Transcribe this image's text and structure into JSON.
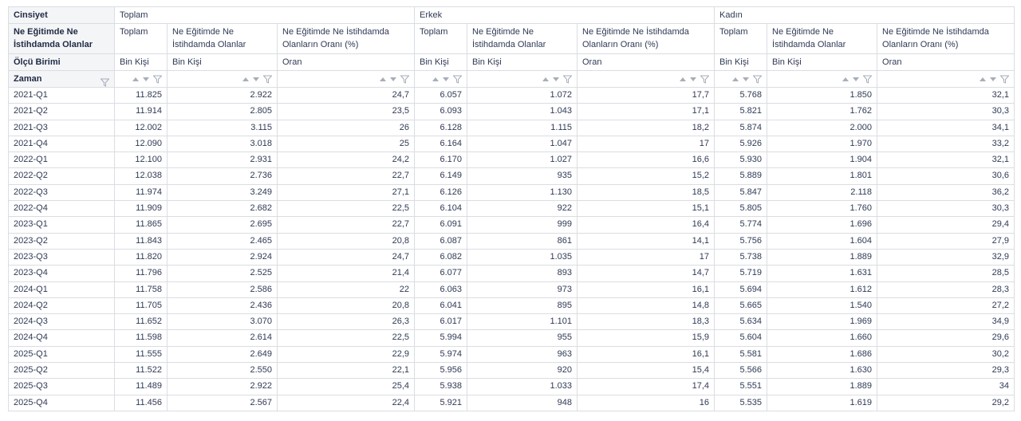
{
  "header": {
    "cinsiyet_label": "Cinsiyet",
    "measure_row_label": "Ne Eğitimde Ne İstihdamda Olanlar",
    "unit_row_label": "Ölçü Birimi",
    "time_label": "Zaman",
    "groups": [
      "Toplam",
      "Erkek",
      "Kadın"
    ],
    "measures": [
      "Toplam",
      "Ne Eğitimde Ne İstihdamda Olanlar",
      "Ne Eğitimde Ne İstihdamda Olanların Oranı (%)"
    ],
    "units": [
      "Bin Kişi",
      "Bin Kişi",
      "Oran"
    ]
  },
  "icons": {
    "sort_up": "sort-ascending-icon",
    "sort_down": "sort-descending-icon",
    "filter": "filter-funnel-icon"
  },
  "rows": [
    {
      "time": "2021-Q1",
      "values": [
        "11.825",
        "2.922",
        "24,7",
        "6.057",
        "1.072",
        "17,7",
        "5.768",
        "1.850",
        "32,1"
      ]
    },
    {
      "time": "2021-Q2",
      "values": [
        "11.914",
        "2.805",
        "23,5",
        "6.093",
        "1.043",
        "17,1",
        "5.821",
        "1.762",
        "30,3"
      ]
    },
    {
      "time": "2021-Q3",
      "values": [
        "12.002",
        "3.115",
        "26",
        "6.128",
        "1.115",
        "18,2",
        "5.874",
        "2.000",
        "34,1"
      ]
    },
    {
      "time": "2021-Q4",
      "values": [
        "12.090",
        "3.018",
        "25",
        "6.164",
        "1.047",
        "17",
        "5.926",
        "1.970",
        "33,2"
      ]
    },
    {
      "time": "2022-Q1",
      "values": [
        "12.100",
        "2.931",
        "24,2",
        "6.170",
        "1.027",
        "16,6",
        "5.930",
        "1.904",
        "32,1"
      ]
    },
    {
      "time": "2022-Q2",
      "values": [
        "12.038",
        "2.736",
        "22,7",
        "6.149",
        "935",
        "15,2",
        "5.889",
        "1.801",
        "30,6"
      ]
    },
    {
      "time": "2022-Q3",
      "values": [
        "11.974",
        "3.249",
        "27,1",
        "6.126",
        "1.130",
        "18,5",
        "5.847",
        "2.118",
        "36,2"
      ]
    },
    {
      "time": "2022-Q4",
      "values": [
        "11.909",
        "2.682",
        "22,5",
        "6.104",
        "922",
        "15,1",
        "5.805",
        "1.760",
        "30,3"
      ]
    },
    {
      "time": "2023-Q1",
      "values": [
        "11.865",
        "2.695",
        "22,7",
        "6.091",
        "999",
        "16,4",
        "5.774",
        "1.696",
        "29,4"
      ]
    },
    {
      "time": "2023-Q2",
      "values": [
        "11.843",
        "2.465",
        "20,8",
        "6.087",
        "861",
        "14,1",
        "5.756",
        "1.604",
        "27,9"
      ]
    },
    {
      "time": "2023-Q3",
      "values": [
        "11.820",
        "2.924",
        "24,7",
        "6.082",
        "1.035",
        "17",
        "5.738",
        "1.889",
        "32,9"
      ]
    },
    {
      "time": "2023-Q4",
      "values": [
        "11.796",
        "2.525",
        "21,4",
        "6.077",
        "893",
        "14,7",
        "5.719",
        "1.631",
        "28,5"
      ]
    },
    {
      "time": "2024-Q1",
      "values": [
        "11.758",
        "2.586",
        "22",
        "6.063",
        "973",
        "16,1",
        "5.694",
        "1.612",
        "28,3"
      ]
    },
    {
      "time": "2024-Q2",
      "values": [
        "11.705",
        "2.436",
        "20,8",
        "6.041",
        "895",
        "14,8",
        "5.665",
        "1.540",
        "27,2"
      ]
    },
    {
      "time": "2024-Q3",
      "values": [
        "11.652",
        "3.070",
        "26,3",
        "6.017",
        "1.101",
        "18,3",
        "5.634",
        "1.969",
        "34,9"
      ]
    },
    {
      "time": "2024-Q4",
      "values": [
        "11.598",
        "2.614",
        "22,5",
        "5.994",
        "955",
        "15,9",
        "5.604",
        "1.660",
        "29,6"
      ]
    },
    {
      "time": "2025-Q1",
      "values": [
        "11.555",
        "2.649",
        "22,9",
        "5.974",
        "963",
        "16,1",
        "5.581",
        "1.686",
        "30,2"
      ]
    },
    {
      "time": "2025-Q2",
      "values": [
        "11.522",
        "2.550",
        "22,1",
        "5.956",
        "920",
        "15,4",
        "5.566",
        "1.630",
        "29,3"
      ]
    },
    {
      "time": "2025-Q3",
      "values": [
        "11.489",
        "2.922",
        "25,4",
        "5.938",
        "1.033",
        "17,4",
        "5.551",
        "1.889",
        "34"
      ]
    },
    {
      "time": "2025-Q4",
      "values": [
        "11.456",
        "2.567",
        "22,4",
        "5.921",
        "948",
        "16",
        "5.535",
        "1.619",
        "29,2"
      ]
    }
  ]
}
